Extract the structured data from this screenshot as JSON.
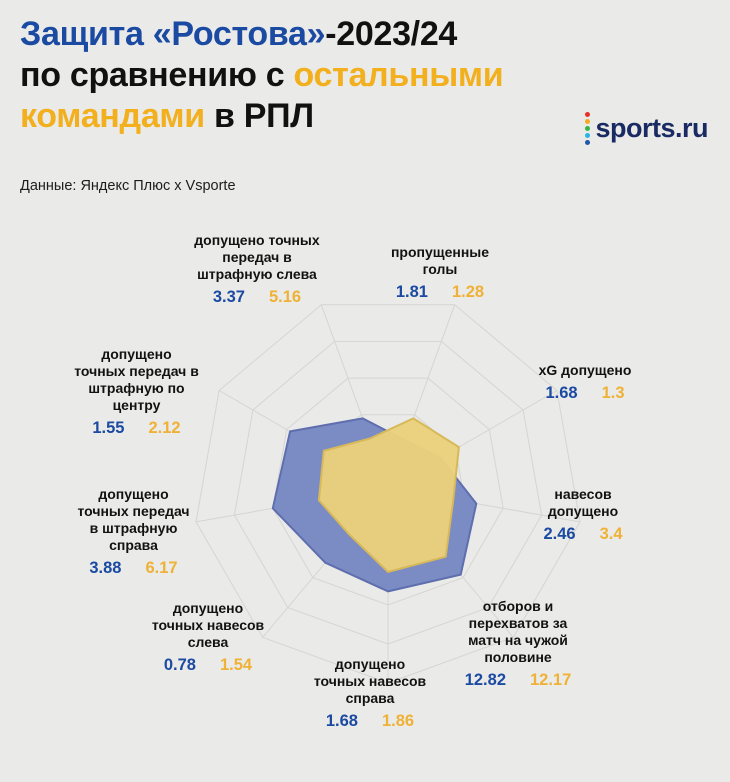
{
  "title": {
    "l1_blue": "Защита «Ростова»",
    "l1_black": "-2023/24",
    "l2_black": "по сравнению с ",
    "l2_yellow": "остальными",
    "l3_yellow": "командами",
    "l3_black": " в РПЛ"
  },
  "logo": {
    "text": "sports.ru",
    "dot_colors": [
      "#e63329",
      "#f7a823",
      "#36b24a",
      "#2bb3e6",
      "#2157a8"
    ]
  },
  "source": "Данные: Яндекс Плюс x Vsporte",
  "colors": {
    "title_blue": "#1b4aa2",
    "title_yellow": "#f2b01e",
    "value_blue": "#1b4aa2",
    "value_yellow": "#efb136",
    "background": "#eaeae8"
  },
  "chart_data": {
    "type": "radar",
    "title": "Защита «Ростова»-2023/24 по сравнению с остальными командами в РПЛ",
    "legend_position": "none",
    "grid": {
      "rings": 5,
      "color": "#d5d5d2",
      "show": true
    },
    "series": [
      {
        "name": "Ростов",
        "color": "#7b8cc4",
        "stroke": "#5e6eae"
      },
      {
        "name": "остальные команды",
        "color": "#ead17c",
        "stroke": "#d8b95a"
      }
    ],
    "axes": [
      {
        "label": "допущено точных передач в штрафную слева",
        "angle_deg": -110,
        "rostov": "3.37",
        "league": "5.16",
        "r_rostov": 0.38,
        "r_league": 0.27
      },
      {
        "label": "пропущенные голы",
        "angle_deg": -70,
        "rostov": "1.81",
        "league": "1.28",
        "r_rostov": 0.26,
        "r_league": 0.38
      },
      {
        "label": "xG допущено",
        "angle_deg": -30,
        "rostov": "1.68",
        "league": "1.3",
        "r_rostov": 0.31,
        "r_league": 0.42
      },
      {
        "label": "навесов допущено",
        "angle_deg": 10,
        "rostov": "2.46",
        "league": "3.4",
        "r_rostov": 0.46,
        "r_league": 0.34
      },
      {
        "label": "отборов и перехватов за матч на чужой половине",
        "angle_deg": 50,
        "rostov": "12.82",
        "league": "12.17",
        "r_rostov": 0.58,
        "r_league": 0.46
      },
      {
        "label": "допущено точных навесов справа",
        "angle_deg": 90,
        "rostov": "1.68",
        "league": "1.86",
        "r_rostov": 0.53,
        "r_league": 0.43
      },
      {
        "label": "допущено точных навесов слева",
        "angle_deg": 130,
        "rostov": "0.78",
        "league": "1.54",
        "r_rostov": 0.5,
        "r_league": 0.31
      },
      {
        "label": "допущено точных передач в штрафную справа",
        "angle_deg": 170,
        "rostov": "3.88",
        "league": "6.17",
        "r_rostov": 0.6,
        "r_league": 0.36
      },
      {
        "label": "допущено точных передач в штрафную по центру",
        "angle_deg": 210,
        "rostov": "1.55",
        "league": "2.12",
        "r_rostov": 0.58,
        "r_league": 0.38
      }
    ]
  }
}
